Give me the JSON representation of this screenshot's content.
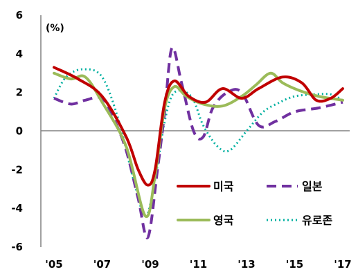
{
  "chart_data": {
    "type": "line",
    "unit_label": "(%)",
    "x_ticks": [
      "'05",
      "'07",
      "'09",
      "'11",
      "'13",
      "'15",
      "'17"
    ],
    "y_ticks": [
      "6",
      "4",
      "2",
      "0",
      "-2",
      "-4",
      "-6"
    ],
    "xlim": [
      2005,
      2017
    ],
    "ylim": [
      -6,
      6
    ],
    "grid": false,
    "legend_position": "bottom-right",
    "series": [
      {
        "name": "미국",
        "color": "#c00000",
        "style": "solid",
        "points": [
          [
            2005.0,
            3.3
          ],
          [
            2006.0,
            2.7
          ],
          [
            2007.0,
            1.8
          ],
          [
            2008.0,
            -0.3
          ],
          [
            2008.5,
            -2.0
          ],
          [
            2008.9,
            -2.8
          ],
          [
            2009.2,
            -2.0
          ],
          [
            2009.6,
            1.5
          ],
          [
            2010.0,
            2.6
          ],
          [
            2010.6,
            1.8
          ],
          [
            2011.3,
            1.5
          ],
          [
            2012.0,
            2.2
          ],
          [
            2012.8,
            1.7
          ],
          [
            2013.5,
            2.2
          ],
          [
            2014.5,
            2.8
          ],
          [
            2015.3,
            2.5
          ],
          [
            2015.9,
            1.6
          ],
          [
            2016.5,
            1.7
          ],
          [
            2017.0,
            2.2
          ]
        ]
      },
      {
        "name": "일본",
        "color": "#7030a0",
        "style": "dashed",
        "points": [
          [
            2005.0,
            1.7
          ],
          [
            2005.7,
            1.4
          ],
          [
            2006.3,
            1.6
          ],
          [
            2007.0,
            1.7
          ],
          [
            2007.5,
            0.6
          ],
          [
            2008.0,
            -1.0
          ],
          [
            2008.5,
            -3.5
          ],
          [
            2008.9,
            -5.5
          ],
          [
            2009.3,
            -2.0
          ],
          [
            2009.6,
            1.0
          ],
          [
            2009.9,
            4.3
          ],
          [
            2010.3,
            2.5
          ],
          [
            2010.8,
            0.0
          ],
          [
            2011.2,
            -0.3
          ],
          [
            2011.6,
            1.2
          ],
          [
            2012.2,
            2.0
          ],
          [
            2012.8,
            2.0
          ],
          [
            2013.5,
            0.3
          ],
          [
            2014.2,
            0.5
          ],
          [
            2015.0,
            1.0
          ],
          [
            2016.0,
            1.2
          ],
          [
            2017.0,
            1.5
          ]
        ]
      },
      {
        "name": "영국",
        "color": "#9bbb59",
        "style": "solid",
        "points": [
          [
            2005.0,
            3.0
          ],
          [
            2005.7,
            2.7
          ],
          [
            2006.3,
            2.8
          ],
          [
            2007.0,
            1.5
          ],
          [
            2008.0,
            -0.8
          ],
          [
            2008.8,
            -4.4
          ],
          [
            2009.2,
            -2.3
          ],
          [
            2009.6,
            1.2
          ],
          [
            2010.0,
            2.3
          ],
          [
            2010.5,
            1.8
          ],
          [
            2011.2,
            1.4
          ],
          [
            2012.0,
            1.3
          ],
          [
            2012.8,
            1.8
          ],
          [
            2013.4,
            2.4
          ],
          [
            2014.0,
            3.0
          ],
          [
            2014.5,
            2.5
          ],
          [
            2015.2,
            2.1
          ],
          [
            2016.0,
            1.8
          ],
          [
            2017.0,
            1.6
          ]
        ]
      },
      {
        "name": "유로존",
        "color": "#00b0a0",
        "style": "dotted",
        "points": [
          [
            2005.0,
            1.7
          ],
          [
            2005.5,
            2.8
          ],
          [
            2006.2,
            3.2
          ],
          [
            2007.0,
            2.8
          ],
          [
            2007.7,
            0.5
          ],
          [
            2008.3,
            -2.5
          ],
          [
            2008.8,
            -4.4
          ],
          [
            2009.2,
            -2.5
          ],
          [
            2009.6,
            0.5
          ],
          [
            2010.0,
            2.0
          ],
          [
            2010.7,
            1.8
          ],
          [
            2011.2,
            0.3
          ],
          [
            2011.8,
            -0.8
          ],
          [
            2012.3,
            -1.0
          ],
          [
            2013.0,
            0.0
          ],
          [
            2013.7,
            1.0
          ],
          [
            2014.4,
            1.5
          ],
          [
            2015.0,
            1.8
          ],
          [
            2015.8,
            1.9
          ],
          [
            2016.5,
            1.9
          ],
          [
            2017.0,
            1.6
          ]
        ]
      }
    ]
  }
}
